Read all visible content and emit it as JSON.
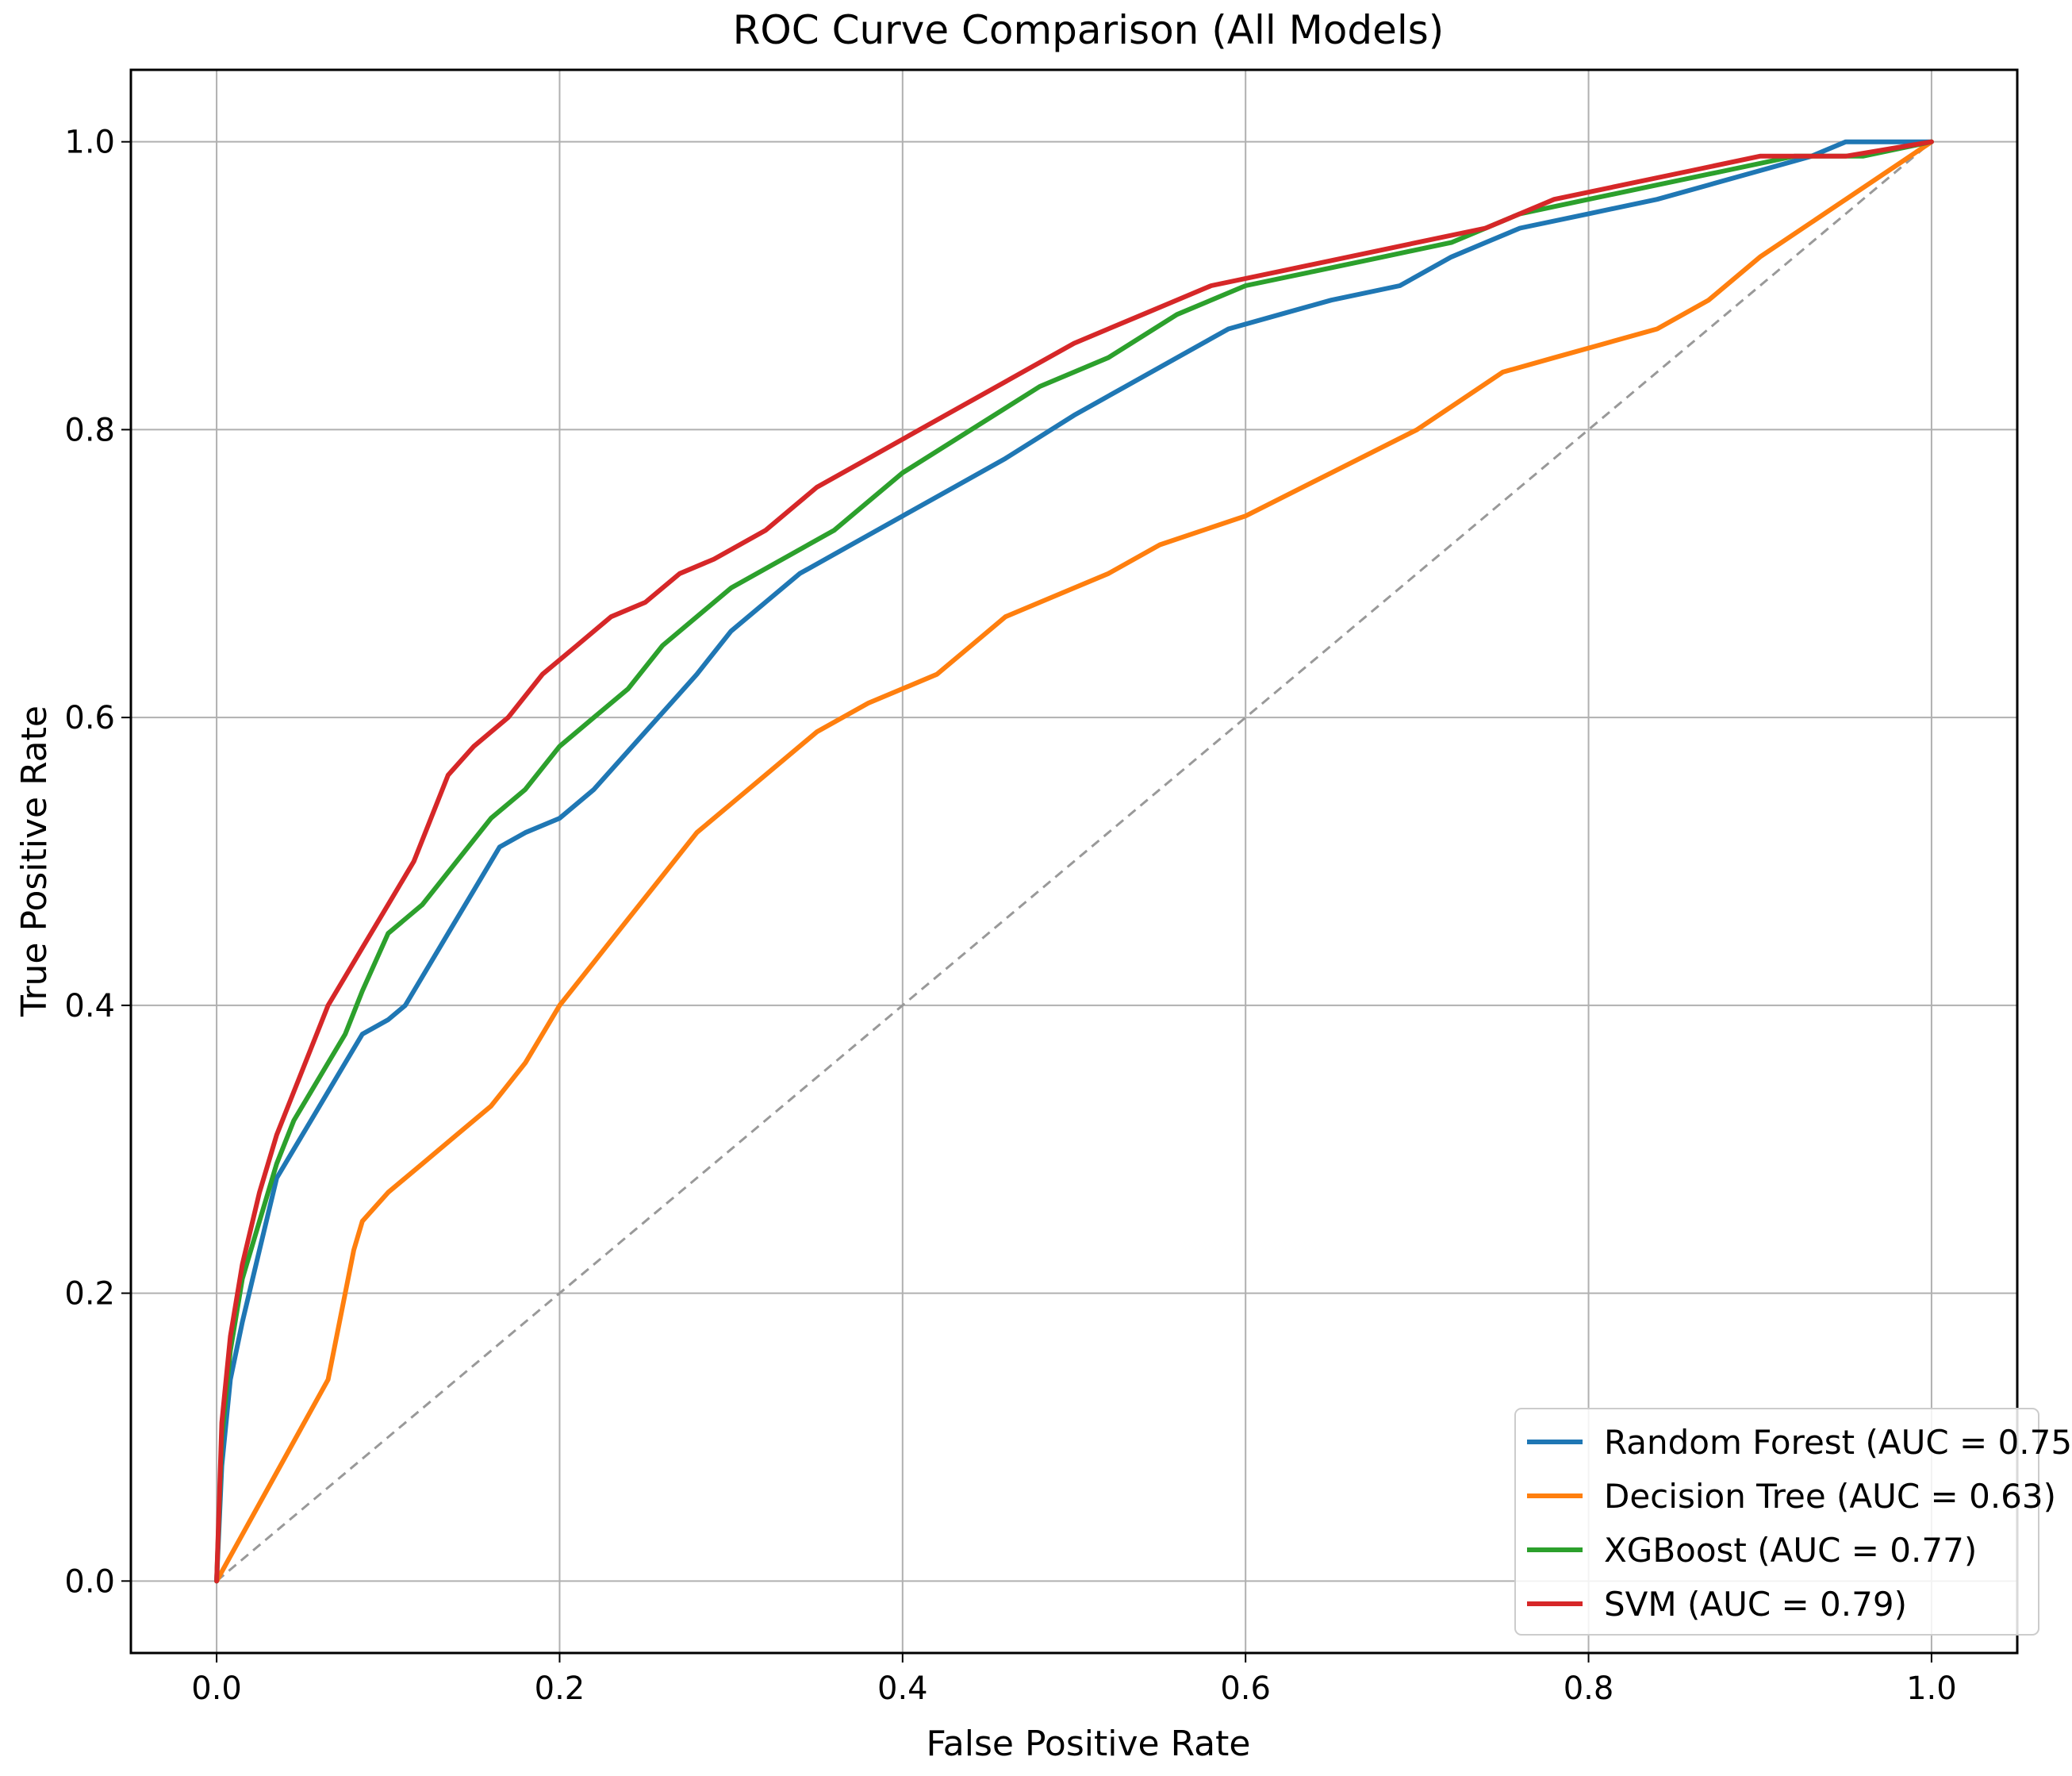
{
  "chart_data": {
    "type": "line",
    "title": "ROC Curve Comparison (All Models)",
    "xlabel": "False Positive Rate",
    "ylabel": "True Positive Rate",
    "xlim": [
      -0.05,
      1.05
    ],
    "ylim": [
      -0.05,
      1.05
    ],
    "xticks": [
      "0.0",
      "0.2",
      "0.4",
      "0.6",
      "0.8",
      "1.0"
    ],
    "yticks": [
      "0.0",
      "0.2",
      "0.4",
      "0.6",
      "0.8",
      "1.0"
    ],
    "grid": true,
    "legend_position": "lower-right",
    "series": [
      {
        "name": "Random Forest (AUC = 0.75)",
        "color": "#1f77b4",
        "x": [
          0,
          0.003,
          0.008,
          0.015,
          0.025,
          0.035,
          0.045,
          0.055,
          0.065,
          0.075,
          0.085,
          0.1,
          0.11,
          0.12,
          0.135,
          0.15,
          0.165,
          0.18,
          0.2,
          0.22,
          0.235,
          0.25,
          0.265,
          0.28,
          0.3,
          0.32,
          0.34,
          0.37,
          0.4,
          0.43,
          0.46,
          0.5,
          0.53,
          0.56,
          0.59,
          0.62,
          0.65,
          0.69,
          0.72,
          0.74,
          0.76,
          0.8,
          0.84,
          0.87,
          0.9,
          0.93,
          0.95,
          0.97,
          1.0
        ],
        "y": [
          0,
          0.08,
          0.14,
          0.18,
          0.23,
          0.28,
          0.3,
          0.32,
          0.34,
          0.36,
          0.38,
          0.39,
          0.4,
          0.42,
          0.45,
          0.48,
          0.51,
          0.52,
          0.53,
          0.55,
          0.57,
          0.59,
          0.61,
          0.63,
          0.66,
          0.68,
          0.7,
          0.72,
          0.74,
          0.76,
          0.78,
          0.81,
          0.83,
          0.85,
          0.87,
          0.88,
          0.89,
          0.9,
          0.92,
          0.93,
          0.94,
          0.95,
          0.96,
          0.97,
          0.98,
          0.99,
          1.0,
          1.0,
          1.0
        ]
      },
      {
        "name": "Decision Tree (AUC = 0.63)",
        "color": "#ff7f0e",
        "x": [
          0,
          0.065,
          0.075,
          0.08,
          0.085,
          0.1,
          0.12,
          0.14,
          0.16,
          0.18,
          0.2,
          0.22,
          0.24,
          0.26,
          0.28,
          0.3,
          0.32,
          0.35,
          0.38,
          0.4,
          0.42,
          0.44,
          0.46,
          0.48,
          0.5,
          0.52,
          0.55,
          0.6,
          0.65,
          0.7,
          0.75,
          0.78,
          0.81,
          0.84,
          0.87,
          0.9,
          0.95,
          1.0
        ],
        "y": [
          0,
          0.14,
          0.2,
          0.23,
          0.25,
          0.27,
          0.29,
          0.31,
          0.33,
          0.36,
          0.4,
          0.43,
          0.46,
          0.49,
          0.52,
          0.54,
          0.56,
          0.59,
          0.61,
          0.62,
          0.63,
          0.65,
          0.67,
          0.68,
          0.69,
          0.7,
          0.72,
          0.74,
          0.77,
          0.8,
          0.84,
          0.85,
          0.86,
          0.87,
          0.89,
          0.92,
          0.96,
          1.0
        ]
      },
      {
        "name": "XGBoost (AUC = 0.77)",
        "color": "#2ca02c",
        "x": [
          0,
          0.003,
          0.008,
          0.015,
          0.025,
          0.035,
          0.045,
          0.055,
          0.065,
          0.075,
          0.085,
          0.1,
          0.12,
          0.14,
          0.16,
          0.18,
          0.2,
          0.22,
          0.24,
          0.26,
          0.28,
          0.3,
          0.33,
          0.36,
          0.4,
          0.44,
          0.48,
          0.52,
          0.56,
          0.6,
          0.64,
          0.68,
          0.72,
          0.76,
          0.8,
          0.84,
          0.88,
          0.92,
          0.96,
          1.0
        ],
        "y": [
          0,
          0.1,
          0.16,
          0.21,
          0.25,
          0.29,
          0.32,
          0.34,
          0.36,
          0.38,
          0.41,
          0.45,
          0.47,
          0.5,
          0.53,
          0.55,
          0.58,
          0.6,
          0.62,
          0.65,
          0.67,
          0.69,
          0.71,
          0.73,
          0.77,
          0.8,
          0.83,
          0.85,
          0.88,
          0.9,
          0.91,
          0.92,
          0.93,
          0.95,
          0.96,
          0.97,
          0.98,
          0.99,
          0.99,
          1.0
        ]
      },
      {
        "name": "SVM (AUC = 0.79)",
        "color": "#d62728",
        "x": [
          0,
          0.003,
          0.008,
          0.015,
          0.025,
          0.035,
          0.045,
          0.055,
          0.065,
          0.075,
          0.085,
          0.1,
          0.115,
          0.125,
          0.135,
          0.15,
          0.17,
          0.19,
          0.21,
          0.23,
          0.25,
          0.27,
          0.29,
          0.32,
          0.35,
          0.38,
          0.41,
          0.44,
          0.47,
          0.5,
          0.54,
          0.58,
          0.62,
          0.66,
          0.7,
          0.74,
          0.78,
          0.82,
          0.86,
          0.9,
          0.95,
          1.0
        ],
        "y": [
          0,
          0.11,
          0.17,
          0.22,
          0.27,
          0.31,
          0.34,
          0.37,
          0.4,
          0.42,
          0.44,
          0.47,
          0.5,
          0.53,
          0.56,
          0.58,
          0.6,
          0.63,
          0.65,
          0.67,
          0.68,
          0.7,
          0.71,
          0.73,
          0.76,
          0.78,
          0.8,
          0.82,
          0.84,
          0.86,
          0.88,
          0.9,
          0.91,
          0.92,
          0.93,
          0.94,
          0.96,
          0.97,
          0.98,
          0.99,
          0.99,
          1.0
        ]
      }
    ]
  },
  "colors": {
    "grid": "#b0b0b0",
    "diagonal": "#999999",
    "axes": "#000000"
  }
}
